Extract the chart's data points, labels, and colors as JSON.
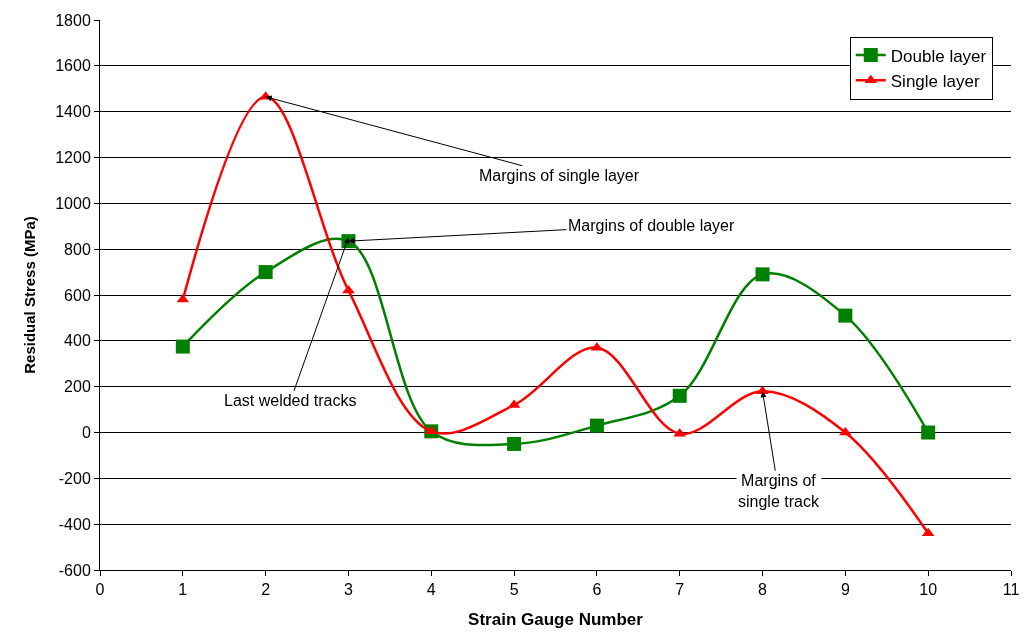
{
  "chart_data": {
    "type": "line",
    "xlabel": "Strain Gauge Number",
    "ylabel": "Residual Stress (MPa)",
    "x": [
      1,
      2,
      3,
      4,
      5,
      6,
      7,
      8,
      9,
      10
    ],
    "series": [
      {
        "name": "Double layer",
        "color": "#008000",
        "marker": "square",
        "values": [
          375,
          700,
          835,
          5,
          -50,
          30,
          160,
          690,
          510,
          0
        ]
      },
      {
        "name": "Single layer",
        "color": "#ff0000",
        "marker": "triangle",
        "values": [
          580,
          1465,
          620,
          5,
          120,
          370,
          -5,
          180,
          0,
          -440
        ]
      }
    ],
    "xlim": [
      0,
      11
    ],
    "xticks": [
      0,
      1,
      2,
      3,
      4,
      5,
      6,
      7,
      8,
      9,
      10,
      11
    ],
    "ylim": [
      -600,
      1800
    ],
    "yticks": [
      -600,
      -400,
      -200,
      0,
      200,
      400,
      600,
      800,
      1000,
      1200,
      1400,
      1600,
      1800
    ],
    "grid": "y",
    "legend": "top right",
    "line_style": "solid",
    "annotations": [
      {
        "text": "Margins of single layer",
        "x": 2,
        "y": 1465
      },
      {
        "text": "Margins of double layer",
        "x": 3,
        "y": 835
      },
      {
        "text": "Last welded tracks",
        "x": 3,
        "y": 850
      },
      {
        "text": "Margins of\nsingle track",
        "x": 8,
        "y": 180
      }
    ]
  }
}
